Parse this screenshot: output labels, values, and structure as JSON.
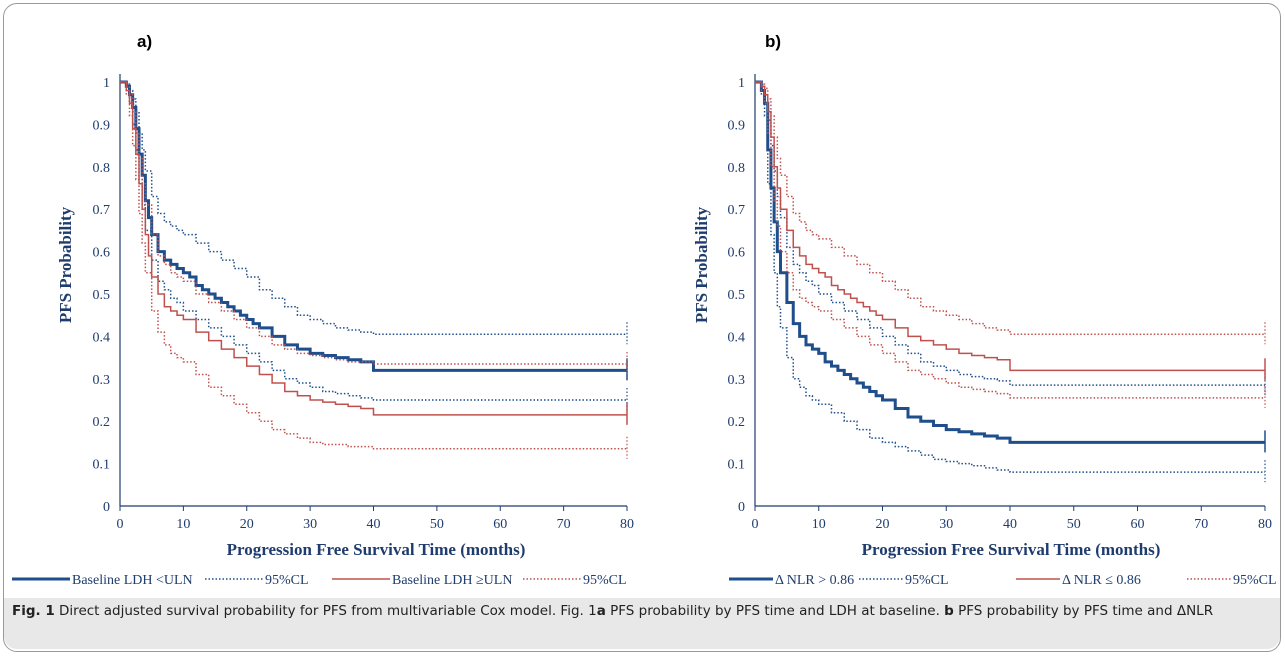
{
  "caption": {
    "label": "Fig. 1",
    "text1": " Direct adjusted survival probability for PFS from multivariable Cox model. Fig. 1",
    "ref_a": "a",
    "text2": " PFS probability by PFS time and LDH at baseline. ",
    "ref_b": "b",
    "text3": " PFS probability by PFS time and ΔNLR"
  },
  "chart_data": [
    {
      "type": "line",
      "panel_label": "a)",
      "xlabel": "Progression Free Survival Time (months)",
      "ylabel": "PFS Probability",
      "xlim": [
        0,
        80
      ],
      "ylim": [
        0,
        1
      ],
      "xticks": [
        "0",
        "10",
        "20",
        "30",
        "40",
        "50",
        "60",
        "70",
        "80"
      ],
      "yticks": [
        "0",
        "0.1",
        "0.2",
        "0.3",
        "0.4",
        "0.5",
        "0.6",
        "0.7",
        "0.8",
        "0.9",
        "1"
      ],
      "colors": {
        "blue": "#1f4e8c",
        "red": "#c0504d"
      },
      "series": [
        {
          "name": "Baseline LDH <ULN",
          "color": "#1f4e8c",
          "style": "solid",
          "width": 3,
          "x": [
            0,
            1,
            1.5,
            2,
            2.5,
            3,
            3.5,
            4,
            4.5,
            5,
            6,
            7,
            8,
            9,
            10,
            11,
            12,
            13,
            14,
            15,
            16,
            17,
            18,
            19,
            20,
            21,
            22,
            24,
            26,
            28,
            30,
            32,
            34,
            36,
            38,
            40,
            80
          ],
          "y": [
            1,
            0.99,
            0.97,
            0.94,
            0.89,
            0.83,
            0.78,
            0.72,
            0.68,
            0.64,
            0.6,
            0.58,
            0.57,
            0.56,
            0.55,
            0.54,
            0.52,
            0.51,
            0.5,
            0.49,
            0.48,
            0.47,
            0.46,
            0.45,
            0.44,
            0.43,
            0.42,
            0.4,
            0.38,
            0.37,
            0.36,
            0.355,
            0.35,
            0.345,
            0.34,
            0.32,
            0.32
          ]
        },
        {
          "name": "95%CL",
          "color": "#1f4e8c",
          "style": "dotted",
          "width": 1.5,
          "x": [
            0,
            1,
            1.5,
            2,
            2.5,
            3,
            3.5,
            4,
            5,
            6,
            7,
            8,
            9,
            10,
            12,
            14,
            16,
            18,
            20,
            22,
            24,
            26,
            28,
            30,
            32,
            34,
            36,
            38,
            40,
            80
          ],
          "y": [
            1,
            0.995,
            0.98,
            0.96,
            0.93,
            0.88,
            0.84,
            0.79,
            0.73,
            0.69,
            0.67,
            0.66,
            0.65,
            0.64,
            0.62,
            0.6,
            0.58,
            0.56,
            0.54,
            0.51,
            0.49,
            0.47,
            0.45,
            0.44,
            0.43,
            0.42,
            0.415,
            0.41,
            0.405,
            0.405
          ]
        },
        {
          "name": "95%CL",
          "color": "#1f4e8c",
          "style": "dotted",
          "width": 1.5,
          "x": [
            0,
            1,
            1.5,
            2,
            2.5,
            3,
            3.5,
            4,
            5,
            6,
            7,
            8,
            9,
            10,
            12,
            14,
            16,
            18,
            20,
            22,
            24,
            26,
            28,
            30,
            32,
            34,
            36,
            38,
            40,
            80
          ],
          "y": [
            1,
            0.98,
            0.95,
            0.9,
            0.84,
            0.77,
            0.71,
            0.65,
            0.58,
            0.53,
            0.51,
            0.49,
            0.48,
            0.46,
            0.44,
            0.42,
            0.4,
            0.38,
            0.36,
            0.34,
            0.32,
            0.3,
            0.29,
            0.28,
            0.27,
            0.265,
            0.26,
            0.255,
            0.25,
            0.25
          ]
        },
        {
          "name": "Baseline LDH ≥ULN",
          "color": "#c0504d",
          "style": "solid",
          "width": 1.5,
          "x": [
            0,
            1,
            1.5,
            2,
            2.5,
            3,
            3.5,
            4,
            4.5,
            5,
            6,
            7,
            8,
            9,
            10,
            12,
            14,
            16,
            18,
            20,
            22,
            24,
            26,
            28,
            30,
            32,
            34,
            36,
            38,
            40,
            80
          ],
          "y": [
            1,
            0.98,
            0.95,
            0.89,
            0.83,
            0.76,
            0.7,
            0.64,
            0.59,
            0.54,
            0.5,
            0.47,
            0.46,
            0.45,
            0.44,
            0.41,
            0.39,
            0.37,
            0.35,
            0.33,
            0.31,
            0.29,
            0.27,
            0.26,
            0.25,
            0.245,
            0.24,
            0.235,
            0.23,
            0.215,
            0.215
          ]
        },
        {
          "name": "95%CL",
          "color": "#c0504d",
          "style": "dotted",
          "width": 1.5,
          "x": [
            0,
            1,
            1.5,
            2,
            2.5,
            3,
            3.5,
            4,
            5,
            6,
            7,
            8,
            9,
            10,
            12,
            14,
            16,
            18,
            20,
            22,
            24,
            26,
            28,
            30,
            32,
            34,
            36,
            38,
            40,
            80
          ],
          "y": [
            1,
            0.99,
            0.97,
            0.93,
            0.88,
            0.82,
            0.76,
            0.71,
            0.64,
            0.59,
            0.57,
            0.55,
            0.54,
            0.53,
            0.5,
            0.48,
            0.46,
            0.44,
            0.42,
            0.4,
            0.38,
            0.37,
            0.36,
            0.355,
            0.35,
            0.345,
            0.34,
            0.34,
            0.335,
            0.335
          ]
        },
        {
          "name": "95%CL",
          "color": "#c0504d",
          "style": "dotted",
          "width": 1.5,
          "x": [
            0,
            1,
            1.5,
            2,
            2.5,
            3,
            3.5,
            4,
            5,
            6,
            7,
            8,
            9,
            10,
            12,
            14,
            16,
            18,
            20,
            22,
            24,
            26,
            28,
            30,
            32,
            34,
            36,
            38,
            40,
            80
          ],
          "y": [
            1,
            0.97,
            0.92,
            0.85,
            0.77,
            0.69,
            0.62,
            0.55,
            0.46,
            0.41,
            0.38,
            0.36,
            0.35,
            0.34,
            0.31,
            0.28,
            0.26,
            0.24,
            0.22,
            0.2,
            0.18,
            0.17,
            0.16,
            0.15,
            0.145,
            0.145,
            0.14,
            0.14,
            0.135,
            0.135
          ]
        }
      ]
    },
    {
      "type": "line",
      "panel_label": "b)",
      "xlabel": "Progression Free Survival Time (months)",
      "ylabel": "PFS Probability",
      "xlim": [
        0,
        80
      ],
      "ylim": [
        0,
        1
      ],
      "xticks": [
        "0",
        "10",
        "20",
        "30",
        "40",
        "50",
        "60",
        "70",
        "80"
      ],
      "yticks": [
        "0",
        "0.1",
        "0.2",
        "0.3",
        "0.4",
        "0.5",
        "0.6",
        "0.7",
        "0.8",
        "0.9",
        "1"
      ],
      "colors": {
        "blue": "#1f4e8c",
        "red": "#c0504d"
      },
      "series": [
        {
          "name": "Δ NLR > 0.86",
          "color": "#1f4e8c",
          "style": "solid",
          "width": 3,
          "x": [
            0,
            1,
            1.5,
            2,
            2.5,
            3,
            3.5,
            4,
            5,
            6,
            7,
            8,
            9,
            10,
            11,
            12,
            13,
            14,
            15,
            16,
            17,
            18,
            19,
            20,
            22,
            24,
            26,
            28,
            30,
            32,
            34,
            36,
            38,
            40,
            80
          ],
          "y": [
            1,
            0.98,
            0.95,
            0.84,
            0.75,
            0.67,
            0.6,
            0.55,
            0.48,
            0.43,
            0.4,
            0.38,
            0.37,
            0.36,
            0.34,
            0.33,
            0.32,
            0.31,
            0.3,
            0.29,
            0.28,
            0.27,
            0.26,
            0.25,
            0.23,
            0.21,
            0.2,
            0.19,
            0.18,
            0.175,
            0.17,
            0.165,
            0.16,
            0.15,
            0.15
          ]
        },
        {
          "name": "95%CL",
          "color": "#1f4e8c",
          "style": "dotted",
          "width": 1.5,
          "x": [
            0,
            1,
            1.5,
            2,
            2.5,
            3,
            3.5,
            4,
            5,
            6,
            7,
            8,
            9,
            10,
            12,
            14,
            16,
            18,
            20,
            22,
            24,
            26,
            28,
            30,
            32,
            34,
            36,
            38,
            40,
            80
          ],
          "y": [
            1,
            0.99,
            0.97,
            0.91,
            0.85,
            0.79,
            0.73,
            0.68,
            0.61,
            0.57,
            0.55,
            0.53,
            0.52,
            0.5,
            0.48,
            0.46,
            0.44,
            0.42,
            0.4,
            0.38,
            0.36,
            0.34,
            0.33,
            0.32,
            0.31,
            0.305,
            0.3,
            0.295,
            0.285,
            0.285
          ]
        },
        {
          "name": "95%CL",
          "color": "#1f4e8c",
          "style": "dotted",
          "width": 1.5,
          "x": [
            0,
            1,
            1.5,
            2,
            2.5,
            3,
            3.5,
            4,
            5,
            6,
            7,
            8,
            9,
            10,
            12,
            14,
            16,
            18,
            20,
            22,
            24,
            26,
            28,
            30,
            32,
            34,
            36,
            38,
            40,
            80
          ],
          "y": [
            1,
            0.97,
            0.92,
            0.76,
            0.64,
            0.55,
            0.47,
            0.42,
            0.35,
            0.3,
            0.28,
            0.26,
            0.25,
            0.24,
            0.22,
            0.2,
            0.18,
            0.16,
            0.15,
            0.14,
            0.13,
            0.12,
            0.11,
            0.105,
            0.1,
            0.095,
            0.09,
            0.085,
            0.08,
            0.08
          ]
        },
        {
          "name": "Δ NLR ≤ 0.86",
          "color": "#c0504d",
          "style": "solid",
          "width": 1.5,
          "x": [
            0,
            1,
            1.5,
            2,
            2.5,
            3,
            3.5,
            4,
            5,
            6,
            7,
            8,
            9,
            10,
            11,
            12,
            13,
            14,
            15,
            16,
            17,
            18,
            19,
            20,
            22,
            24,
            26,
            28,
            30,
            32,
            34,
            36,
            38,
            40,
            80
          ],
          "y": [
            1,
            0.99,
            0.97,
            0.93,
            0.87,
            0.8,
            0.75,
            0.7,
            0.65,
            0.61,
            0.59,
            0.57,
            0.56,
            0.55,
            0.54,
            0.52,
            0.51,
            0.5,
            0.49,
            0.48,
            0.47,
            0.46,
            0.45,
            0.44,
            0.42,
            0.4,
            0.39,
            0.38,
            0.37,
            0.36,
            0.355,
            0.35,
            0.345,
            0.32,
            0.32
          ]
        },
        {
          "name": "95%CL",
          "color": "#c0504d",
          "style": "dotted",
          "width": 1.5,
          "x": [
            0,
            1,
            1.5,
            2,
            2.5,
            3,
            3.5,
            4,
            5,
            6,
            7,
            8,
            9,
            10,
            12,
            14,
            16,
            18,
            20,
            22,
            24,
            26,
            28,
            30,
            32,
            34,
            36,
            38,
            40,
            80
          ],
          "y": [
            1,
            0.995,
            0.985,
            0.96,
            0.92,
            0.87,
            0.82,
            0.78,
            0.73,
            0.69,
            0.67,
            0.65,
            0.64,
            0.63,
            0.61,
            0.59,
            0.57,
            0.55,
            0.53,
            0.51,
            0.49,
            0.47,
            0.46,
            0.45,
            0.44,
            0.43,
            0.42,
            0.415,
            0.405,
            0.405
          ]
        },
        {
          "name": "95%CL",
          "color": "#c0504d",
          "style": "dotted",
          "width": 1.5,
          "x": [
            0,
            1,
            1.5,
            2,
            2.5,
            3,
            3.5,
            4,
            5,
            6,
            7,
            8,
            9,
            10,
            12,
            14,
            16,
            18,
            20,
            22,
            24,
            26,
            28,
            30,
            32,
            34,
            36,
            38,
            40,
            80
          ],
          "y": [
            1,
            0.98,
            0.95,
            0.88,
            0.8,
            0.72,
            0.66,
            0.6,
            0.55,
            0.51,
            0.49,
            0.48,
            0.47,
            0.46,
            0.44,
            0.42,
            0.4,
            0.38,
            0.36,
            0.34,
            0.32,
            0.31,
            0.3,
            0.29,
            0.28,
            0.275,
            0.27,
            0.265,
            0.255,
            0.255
          ]
        }
      ]
    }
  ],
  "legends": [
    {
      "items": [
        {
          "label": "Baseline LDH <ULN",
          "color": "#1f4e8c",
          "style": "solid",
          "width": 3
        },
        {
          "label": "95%CL",
          "color": "#1f4e8c",
          "style": "dotted",
          "width": 1.5
        },
        {
          "label": "Baseline LDH ≥ULN",
          "color": "#c0504d",
          "style": "solid",
          "width": 1.5
        },
        {
          "label": "95%CL",
          "color": "#c0504d",
          "style": "dotted",
          "width": 1.5
        }
      ]
    },
    {
      "items": [
        {
          "label": "Δ NLR > 0.86",
          "color": "#1f4e8c",
          "style": "solid",
          "width": 3
        },
        {
          "label": "95%CL",
          "color": "#1f4e8c",
          "style": "dotted",
          "width": 1.5
        },
        {
          "label": "Δ NLR ≤ 0.86",
          "color": "#c0504d",
          "style": "solid",
          "width": 1.5
        },
        {
          "label": "95%CL",
          "color": "#c0504d",
          "style": "dotted",
          "width": 1.5
        }
      ]
    }
  ]
}
